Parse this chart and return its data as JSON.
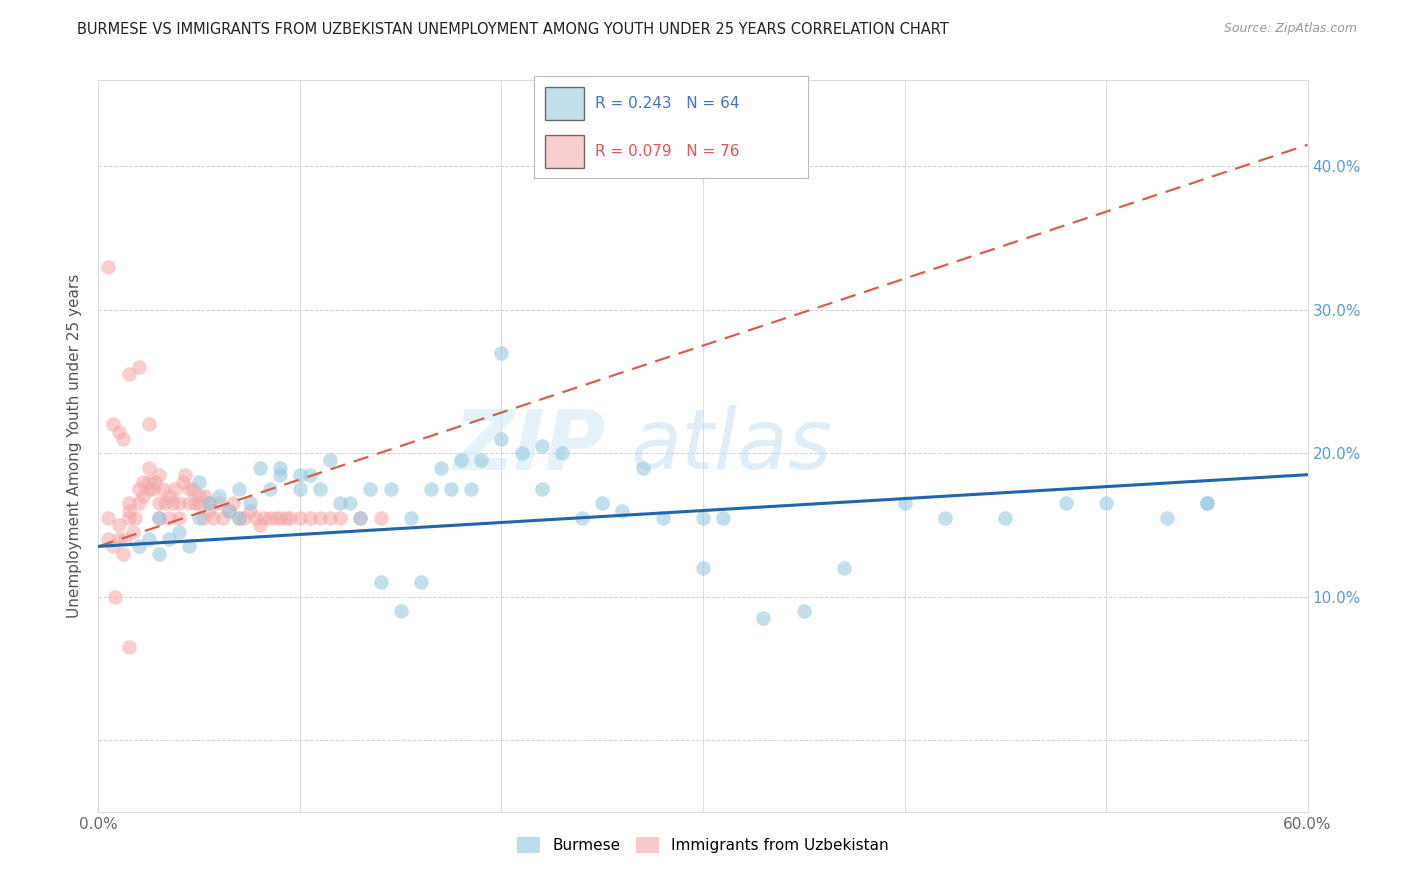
{
  "title": "BURMESE VS IMMIGRANTS FROM UZBEKISTAN UNEMPLOYMENT AMONG YOUTH UNDER 25 YEARS CORRELATION CHART",
  "source": "Source: ZipAtlas.com",
  "ylabel": "Unemployment Among Youth under 25 years",
  "xlim": [
    0.0,
    0.6
  ],
  "ylim": [
    -0.05,
    0.46
  ],
  "blue_R": 0.243,
  "blue_N": 64,
  "pink_R": 0.079,
  "pink_N": 76,
  "blue_color": "#92c5de",
  "pink_color": "#f4a6a6",
  "blue_line_color": "#2166ac",
  "pink_line_color": "#d6604d",
  "watermark_zip": "ZIP",
  "watermark_atlas": "atlas",
  "blue_scatter_x": [
    0.02,
    0.025,
    0.03,
    0.03,
    0.035,
    0.04,
    0.045,
    0.05,
    0.05,
    0.055,
    0.06,
    0.065,
    0.07,
    0.07,
    0.075,
    0.08,
    0.085,
    0.09,
    0.09,
    0.1,
    0.1,
    0.105,
    0.11,
    0.115,
    0.12,
    0.125,
    0.13,
    0.135,
    0.14,
    0.145,
    0.15,
    0.155,
    0.16,
    0.165,
    0.17,
    0.175,
    0.18,
    0.185,
    0.19,
    0.2,
    0.21,
    0.22,
    0.23,
    0.24,
    0.25,
    0.26,
    0.27,
    0.28,
    0.3,
    0.31,
    0.33,
    0.35,
    0.37,
    0.4,
    0.42,
    0.45,
    0.48,
    0.5,
    0.53,
    0.55,
    0.2,
    0.22,
    0.3,
    0.55
  ],
  "blue_scatter_y": [
    0.135,
    0.14,
    0.13,
    0.155,
    0.14,
    0.145,
    0.135,
    0.18,
    0.155,
    0.165,
    0.17,
    0.16,
    0.155,
    0.175,
    0.165,
    0.19,
    0.175,
    0.185,
    0.19,
    0.185,
    0.175,
    0.185,
    0.175,
    0.195,
    0.165,
    0.165,
    0.155,
    0.175,
    0.11,
    0.175,
    0.09,
    0.155,
    0.11,
    0.175,
    0.19,
    0.175,
    0.195,
    0.175,
    0.195,
    0.21,
    0.2,
    0.175,
    0.2,
    0.155,
    0.165,
    0.16,
    0.19,
    0.155,
    0.12,
    0.155,
    0.085,
    0.09,
    0.12,
    0.165,
    0.155,
    0.155,
    0.165,
    0.165,
    0.155,
    0.165,
    0.27,
    0.205,
    0.155,
    0.165
  ],
  "pink_scatter_x": [
    0.005,
    0.005,
    0.007,
    0.008,
    0.01,
    0.01,
    0.012,
    0.013,
    0.015,
    0.015,
    0.015,
    0.017,
    0.018,
    0.02,
    0.02,
    0.022,
    0.022,
    0.025,
    0.025,
    0.025,
    0.027,
    0.028,
    0.03,
    0.03,
    0.03,
    0.032,
    0.033,
    0.035,
    0.035,
    0.037,
    0.038,
    0.04,
    0.04,
    0.042,
    0.043,
    0.045,
    0.045,
    0.047,
    0.048,
    0.05,
    0.05,
    0.052,
    0.053,
    0.055,
    0.055,
    0.057,
    0.06,
    0.062,
    0.065,
    0.067,
    0.07,
    0.072,
    0.075,
    0.078,
    0.08,
    0.082,
    0.085,
    0.088,
    0.09,
    0.093,
    0.095,
    0.1,
    0.105,
    0.11,
    0.115,
    0.12,
    0.13,
    0.14,
    0.015,
    0.02,
    0.025,
    0.005,
    0.007,
    0.01,
    0.012,
    0.015
  ],
  "pink_scatter_y": [
    0.155,
    0.14,
    0.135,
    0.1,
    0.14,
    0.15,
    0.13,
    0.14,
    0.16,
    0.165,
    0.155,
    0.145,
    0.155,
    0.175,
    0.165,
    0.17,
    0.18,
    0.175,
    0.18,
    0.19,
    0.175,
    0.18,
    0.185,
    0.165,
    0.155,
    0.175,
    0.165,
    0.155,
    0.17,
    0.165,
    0.175,
    0.155,
    0.165,
    0.18,
    0.185,
    0.175,
    0.165,
    0.175,
    0.165,
    0.17,
    0.165,
    0.155,
    0.17,
    0.16,
    0.165,
    0.155,
    0.165,
    0.155,
    0.16,
    0.165,
    0.155,
    0.155,
    0.16,
    0.155,
    0.15,
    0.155,
    0.155,
    0.155,
    0.155,
    0.155,
    0.155,
    0.155,
    0.155,
    0.155,
    0.155,
    0.155,
    0.155,
    0.155,
    0.255,
    0.26,
    0.22,
    0.33,
    0.22,
    0.215,
    0.21,
    0.065
  ],
  "blue_line_x0": 0.0,
  "blue_line_x1": 0.6,
  "blue_line_y0": 0.135,
  "blue_line_y1": 0.185,
  "pink_line_x0": 0.0,
  "pink_line_x1": 0.6,
  "pink_line_y0": 0.135,
  "pink_line_y1": 0.415
}
